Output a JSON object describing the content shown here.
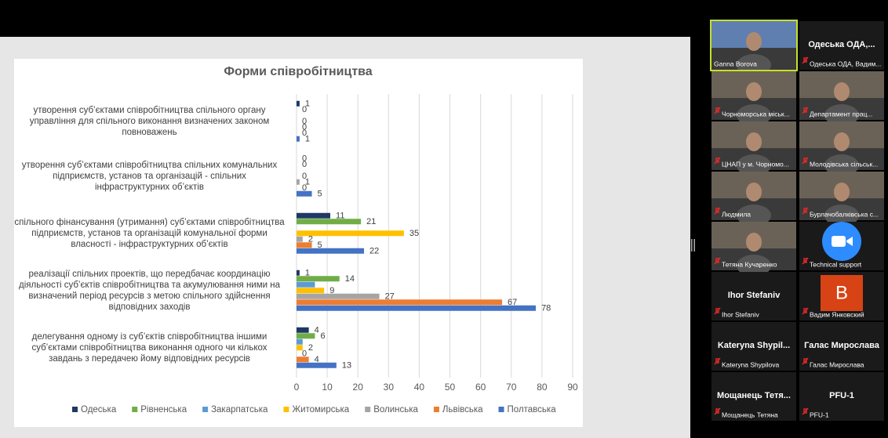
{
  "chart_data": {
    "type": "hbar",
    "title": "Форми співробітництва",
    "categories": [
      "утворення суб’єктами співробітництва спільного органу управління для спільного виконання визначених законом повноважень",
      "утворення суб’єктами співробітництва спільних комунальних підприємств, установ та організацій - спільних інфраструктурних об’єктів",
      "спільного фінансування (утримання) суб’єктами співробітництва підприємств, установ та організацій комунальної форми власності - інфраструктурних об’єктів",
      "реалізації спільних проектів, що передбачає координацію діяльності суб’єктів співробітництва та акумулювання ними на визначений період ресурсів з метою спільного здійснення відповідних заходів",
      "делегування одному із суб’єктів співробітництва іншими суб’єктами співробітництва виконання одного чи кількох завдань з передачею йому відповідних ресурсів"
    ],
    "series": [
      {
        "name": "Одеська",
        "color": "#1f3864",
        "values": [
          1,
          0,
          11,
          1,
          4
        ]
      },
      {
        "name": "Рівненська",
        "color": "#70ad47",
        "values": [
          0,
          0,
          21,
          14,
          6
        ]
      },
      {
        "name": "Закарпатська",
        "color": "#5b9bd5",
        "values": [
          0,
          0,
          0,
          6,
          2
        ],
        "show_labels": false
      },
      {
        "name": "Житомирська",
        "color": "#ffc000",
        "values": [
          0,
          0,
          35,
          9,
          2
        ]
      },
      {
        "name": "Волинська",
        "color": "#a5a5a5",
        "values": [
          0,
          1,
          2,
          27,
          0
        ]
      },
      {
        "name": "Львівська",
        "color": "#ed7d31",
        "values": [
          0,
          0,
          5,
          67,
          4
        ]
      },
      {
        "name": "Полтавська",
        "color": "#4472c4",
        "values": [
          1,
          5,
          22,
          78,
          13
        ]
      }
    ],
    "xlim": [
      0,
      90
    ],
    "xticks": [
      0,
      10,
      20,
      30,
      40,
      50,
      60,
      70,
      80,
      90
    ],
    "grid": true,
    "legend": "bottom"
  },
  "participants": [
    {
      "label": "Ganna Borova",
      "video": true,
      "active": true
    },
    {
      "label": "Одеська ОДА, Вадим...",
      "big": "Одеська  ОДА,..."
    },
    {
      "label": "Чорноморська міськ...",
      "video": true
    },
    {
      "label": "Департамент прац...",
      "video": true
    },
    {
      "label": "ЦНАП у м. Чорномо...",
      "video": true
    },
    {
      "label": "Молодівська сільськ...",
      "video": true
    },
    {
      "label": "Людмила",
      "video": true
    },
    {
      "label": "Бурлачобалківська с...",
      "video": true
    },
    {
      "label": "Тетяна Кучаренко",
      "video": true
    },
    {
      "label": "Technical support",
      "zoom": true
    },
    {
      "label": "Ihor Stefaniv",
      "big": "Ihor Stefaniv"
    },
    {
      "label": "Вадим Янковский",
      "avatar": "B"
    },
    {
      "label": "Kateryna Shypilova",
      "big": "Kateryna  Shypil..."
    },
    {
      "label": "Галас Мирослава",
      "big": "Галас  Мирослава"
    },
    {
      "label": "Мощанець Тетяна",
      "big": "Мощанець  Тетя..."
    },
    {
      "label": "PFU-1",
      "big": "PFU-1"
    }
  ]
}
